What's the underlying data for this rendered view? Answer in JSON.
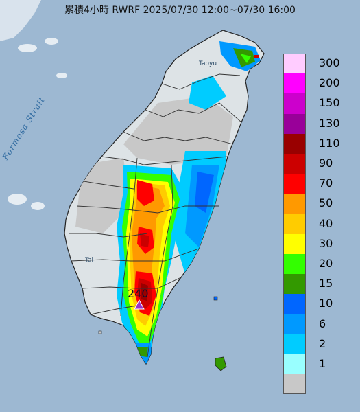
{
  "title": "累積4小時 RWRF 2025/07/30 12:00~07/30 16:00",
  "labels": {
    "strait": "Formosa Strait",
    "taoyuan": "Taoyu",
    "tainan": "Tai"
  },
  "peak": {
    "value": "240"
  },
  "legend": [
    {
      "label": "300",
      "color": "#ffccff"
    },
    {
      "label": "200",
      "color": "#ff00ff"
    },
    {
      "label": "150",
      "color": "#cc00cc"
    },
    {
      "label": "130",
      "color": "#990099"
    },
    {
      "label": "110",
      "color": "#990000"
    },
    {
      "label": "90",
      "color": "#cc0000"
    },
    {
      "label": "70",
      "color": "#ff0000"
    },
    {
      "label": "50",
      "color": "#ff9900"
    },
    {
      "label": "40",
      "color": "#ffcc00"
    },
    {
      "label": "30",
      "color": "#ffff00"
    },
    {
      "label": "20",
      "color": "#33ff00"
    },
    {
      "label": "15",
      "color": "#339900"
    },
    {
      "label": "10",
      "color": "#0066ff"
    },
    {
      "label": "6",
      "color": "#0099ff"
    },
    {
      "label": "2",
      "color": "#00ccff"
    },
    {
      "label": "1",
      "color": "#99ffff"
    },
    {
      "label": "",
      "color": "#c8c8c8"
    }
  ]
}
